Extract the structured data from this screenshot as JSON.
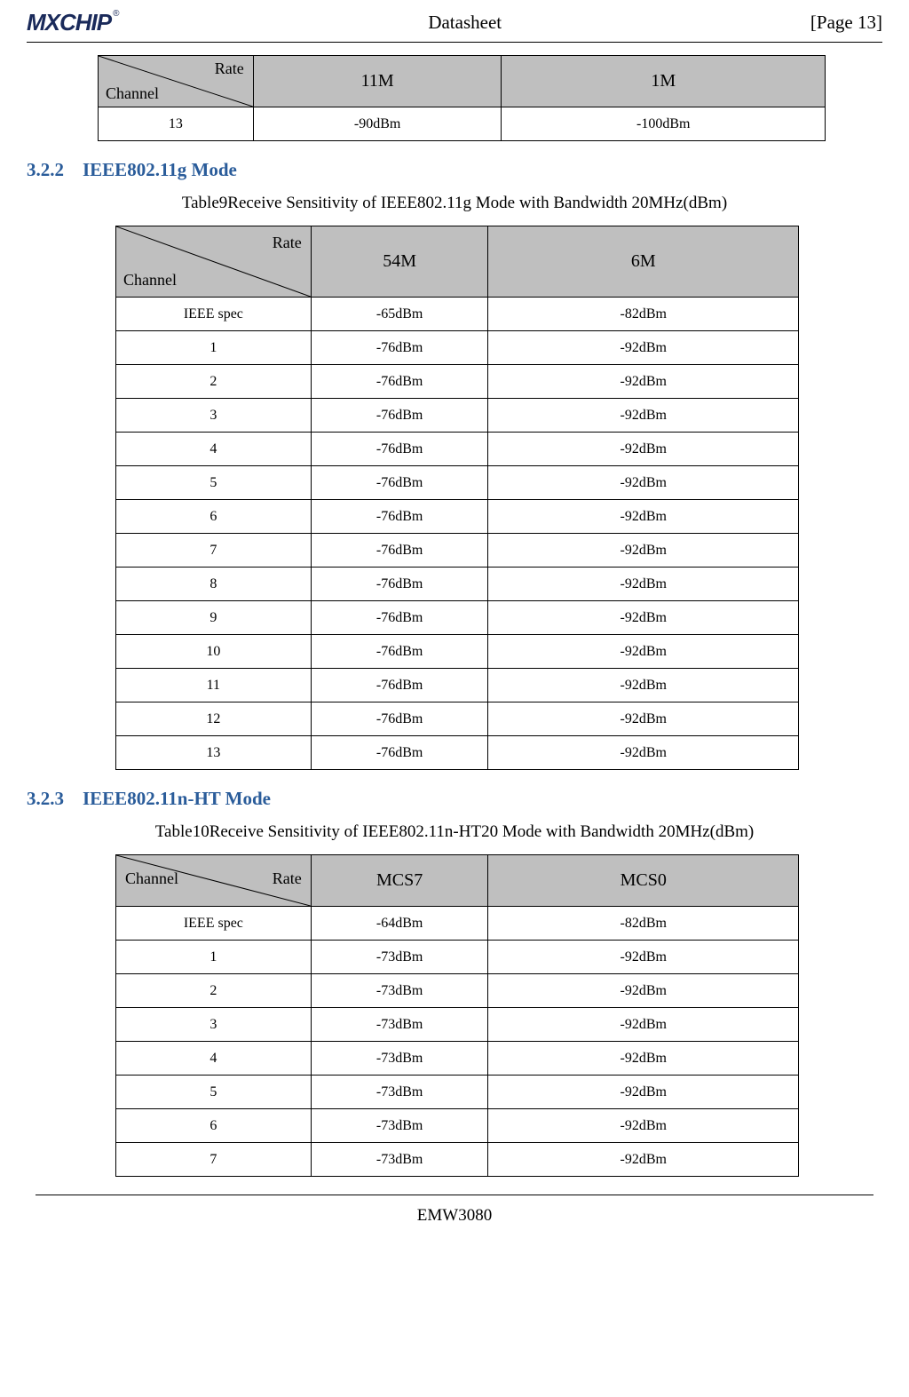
{
  "header": {
    "logo_text": "MXCHIP",
    "logo_reg": "®",
    "doc_title": "Datasheet",
    "page_label": "[Page 13]"
  },
  "table1": {
    "diag_top": "Rate",
    "diag_bottom": "Channel",
    "col2_header": "11M",
    "col3_header": "1M",
    "rows": [
      {
        "channel": "13",
        "col2": "-90dBm",
        "col3": "-100dBm"
      }
    ]
  },
  "section_g": {
    "number": "3.2.2",
    "title": "IEEE802.11g Mode",
    "caption": "Table9Receive Sensitivity of IEEE802.11g Mode with Bandwidth 20MHz(dBm)"
  },
  "table2": {
    "diag_top": "Rate",
    "diag_bottom": "Channel",
    "col2_header": "54M",
    "col3_header": "6M",
    "rows": [
      {
        "channel": "IEEE spec",
        "col2": "-65dBm",
        "col3": "-82dBm"
      },
      {
        "channel": "1",
        "col2": "-76dBm",
        "col3": "-92dBm"
      },
      {
        "channel": "2",
        "col2": "-76dBm",
        "col3": "-92dBm"
      },
      {
        "channel": "3",
        "col2": "-76dBm",
        "col3": "-92dBm"
      },
      {
        "channel": "4",
        "col2": "-76dBm",
        "col3": "-92dBm"
      },
      {
        "channel": "5",
        "col2": "-76dBm",
        "col3": "-92dBm"
      },
      {
        "channel": "6",
        "col2": "-76dBm",
        "col3": "-92dBm"
      },
      {
        "channel": "7",
        "col2": "-76dBm",
        "col3": "-92dBm"
      },
      {
        "channel": "8",
        "col2": "-76dBm",
        "col3": "-92dBm"
      },
      {
        "channel": "9",
        "col2": "-76dBm",
        "col3": "-92dBm"
      },
      {
        "channel": "10",
        "col2": "-76dBm",
        "col3": "-92dBm"
      },
      {
        "channel": "11",
        "col2": "-76dBm",
        "col3": "-92dBm"
      },
      {
        "channel": "12",
        "col2": "-76dBm",
        "col3": "-92dBm"
      },
      {
        "channel": "13",
        "col2": "-76dBm",
        "col3": "-92dBm"
      }
    ]
  },
  "section_n": {
    "number": "3.2.3",
    "title": "IEEE802.11n-HT Mode",
    "caption": "Table10Receive Sensitivity of IEEE802.11n-HT20 Mode with Bandwidth 20MHz(dBm)"
  },
  "table3": {
    "diag_left": "Channel",
    "diag_right": "Rate",
    "col2_header": "MCS7",
    "col3_header": "MCS0",
    "rows": [
      {
        "channel": "IEEE spec",
        "col2": "-64dBm",
        "col3": "-82dBm"
      },
      {
        "channel": "1",
        "col2": "-73dBm",
        "col3": "-92dBm"
      },
      {
        "channel": "2",
        "col2": "-73dBm",
        "col3": "-92dBm"
      },
      {
        "channel": "3",
        "col2": "-73dBm",
        "col3": "-92dBm"
      },
      {
        "channel": "4",
        "col2": "-73dBm",
        "col3": "-92dBm"
      },
      {
        "channel": "5",
        "col2": "-73dBm",
        "col3": "-92dBm"
      },
      {
        "channel": "6",
        "col2": "-73dBm",
        "col3": "-92dBm"
      },
      {
        "channel": "7",
        "col2": "-73dBm",
        "col3": "-92dBm"
      }
    ]
  },
  "footer": {
    "product": "EMW3080"
  }
}
